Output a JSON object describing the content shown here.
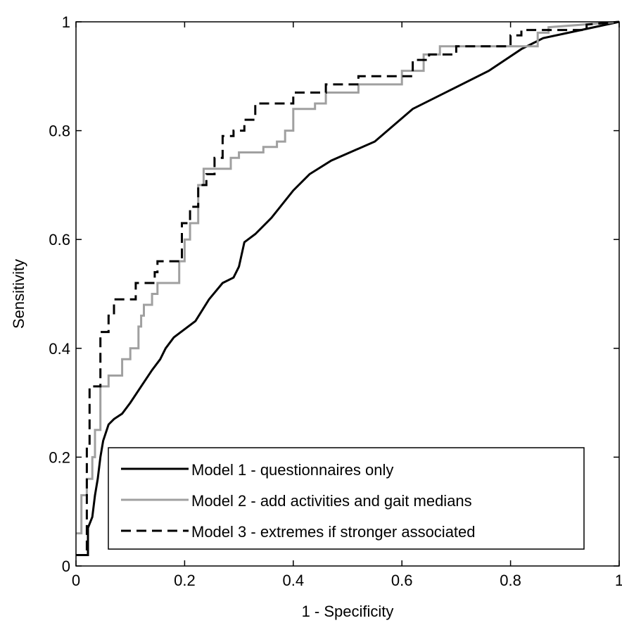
{
  "chart_data": {
    "type": "line",
    "xlabel": "1 - Specificity",
    "ylabel": "Sensitivity",
    "xlim": [
      0,
      1
    ],
    "ylim": [
      0,
      1
    ],
    "x_ticks": [
      0,
      0.2,
      0.4,
      0.6,
      0.8,
      1
    ],
    "y_ticks": [
      0,
      0.2,
      0.4,
      0.6,
      0.8,
      1
    ],
    "x_tick_labels": [
      "0",
      "0.2",
      "0.4",
      "0.6",
      "0.8",
      "1"
    ],
    "y_tick_labels": [
      "0",
      "0.2",
      "0.4",
      "0.6",
      "0.8",
      "1"
    ],
    "grid": false,
    "legend_position": "bottom-right",
    "series": [
      {
        "name": "Model 1 - questionnaires only",
        "color": "#000000",
        "style": "solid",
        "points": [
          [
            0,
            0.02
          ],
          [
            0.022,
            0.02
          ],
          [
            0.022,
            0.07
          ],
          [
            0.03,
            0.09
          ],
          [
            0.035,
            0.13
          ],
          [
            0.04,
            0.16
          ],
          [
            0.045,
            0.2
          ],
          [
            0.05,
            0.23
          ],
          [
            0.06,
            0.26
          ],
          [
            0.07,
            0.27
          ],
          [
            0.085,
            0.28
          ],
          [
            0.1,
            0.3
          ],
          [
            0.12,
            0.33
          ],
          [
            0.14,
            0.36
          ],
          [
            0.155,
            0.38
          ],
          [
            0.165,
            0.4
          ],
          [
            0.18,
            0.42
          ],
          [
            0.2,
            0.435
          ],
          [
            0.22,
            0.45
          ],
          [
            0.245,
            0.49
          ],
          [
            0.27,
            0.52
          ],
          [
            0.29,
            0.53
          ],
          [
            0.3,
            0.55
          ],
          [
            0.31,
            0.595
          ],
          [
            0.33,
            0.61
          ],
          [
            0.36,
            0.64
          ],
          [
            0.4,
            0.69
          ],
          [
            0.43,
            0.72
          ],
          [
            0.47,
            0.745
          ],
          [
            0.55,
            0.78
          ],
          [
            0.62,
            0.84
          ],
          [
            0.7,
            0.88
          ],
          [
            0.76,
            0.91
          ],
          [
            0.82,
            0.95
          ],
          [
            0.86,
            0.97
          ],
          [
            0.93,
            0.985
          ],
          [
            1,
            1
          ]
        ]
      },
      {
        "name": "Model 2 - add activities and gait medians",
        "color": "#a0a0a0",
        "style": "solid",
        "points": [
          [
            0,
            0.06
          ],
          [
            0.01,
            0.06
          ],
          [
            0.01,
            0.13
          ],
          [
            0.02,
            0.13
          ],
          [
            0.02,
            0.16
          ],
          [
            0.03,
            0.16
          ],
          [
            0.03,
            0.2
          ],
          [
            0.035,
            0.2
          ],
          [
            0.035,
            0.25
          ],
          [
            0.045,
            0.25
          ],
          [
            0.045,
            0.33
          ],
          [
            0.06,
            0.33
          ],
          [
            0.06,
            0.35
          ],
          [
            0.085,
            0.35
          ],
          [
            0.085,
            0.38
          ],
          [
            0.1,
            0.38
          ],
          [
            0.1,
            0.4
          ],
          [
            0.115,
            0.4
          ],
          [
            0.115,
            0.44
          ],
          [
            0.12,
            0.44
          ],
          [
            0.12,
            0.46
          ],
          [
            0.125,
            0.46
          ],
          [
            0.125,
            0.48
          ],
          [
            0.14,
            0.48
          ],
          [
            0.14,
            0.5
          ],
          [
            0.15,
            0.5
          ],
          [
            0.15,
            0.52
          ],
          [
            0.19,
            0.52
          ],
          [
            0.19,
            0.56
          ],
          [
            0.2,
            0.56
          ],
          [
            0.2,
            0.6
          ],
          [
            0.21,
            0.6
          ],
          [
            0.21,
            0.63
          ],
          [
            0.225,
            0.63
          ],
          [
            0.225,
            0.7
          ],
          [
            0.235,
            0.7
          ],
          [
            0.235,
            0.73
          ],
          [
            0.285,
            0.73
          ],
          [
            0.285,
            0.75
          ],
          [
            0.3,
            0.75
          ],
          [
            0.3,
            0.76
          ],
          [
            0.345,
            0.76
          ],
          [
            0.345,
            0.77
          ],
          [
            0.37,
            0.77
          ],
          [
            0.37,
            0.78
          ],
          [
            0.385,
            0.78
          ],
          [
            0.385,
            0.8
          ],
          [
            0.4,
            0.8
          ],
          [
            0.4,
            0.84
          ],
          [
            0.44,
            0.84
          ],
          [
            0.44,
            0.85
          ],
          [
            0.46,
            0.85
          ],
          [
            0.46,
            0.87
          ],
          [
            0.52,
            0.87
          ],
          [
            0.52,
            0.885
          ],
          [
            0.6,
            0.885
          ],
          [
            0.6,
            0.91
          ],
          [
            0.64,
            0.91
          ],
          [
            0.64,
            0.94
          ],
          [
            0.67,
            0.94
          ],
          [
            0.67,
            0.955
          ],
          [
            0.85,
            0.955
          ],
          [
            0.85,
            0.98
          ],
          [
            0.87,
            0.98
          ],
          [
            0.87,
            0.99
          ],
          [
            1,
            1
          ]
        ]
      },
      {
        "name": "Model 3 - extremes if stronger associated",
        "color": "#000000",
        "style": "dashed",
        "points": [
          [
            0,
            0.02
          ],
          [
            0.02,
            0.02
          ],
          [
            0.02,
            0.22
          ],
          [
            0.025,
            0.22
          ],
          [
            0.025,
            0.33
          ],
          [
            0.045,
            0.33
          ],
          [
            0.045,
            0.43
          ],
          [
            0.06,
            0.43
          ],
          [
            0.06,
            0.46
          ],
          [
            0.07,
            0.46
          ],
          [
            0.07,
            0.49
          ],
          [
            0.11,
            0.49
          ],
          [
            0.11,
            0.52
          ],
          [
            0.145,
            0.52
          ],
          [
            0.145,
            0.54
          ],
          [
            0.15,
            0.54
          ],
          [
            0.15,
            0.56
          ],
          [
            0.195,
            0.56
          ],
          [
            0.195,
            0.63
          ],
          [
            0.21,
            0.63
          ],
          [
            0.21,
            0.66
          ],
          [
            0.225,
            0.66
          ],
          [
            0.225,
            0.7
          ],
          [
            0.24,
            0.7
          ],
          [
            0.24,
            0.72
          ],
          [
            0.255,
            0.72
          ],
          [
            0.255,
            0.75
          ],
          [
            0.27,
            0.75
          ],
          [
            0.27,
            0.79
          ],
          [
            0.29,
            0.79
          ],
          [
            0.29,
            0.8
          ],
          [
            0.31,
            0.8
          ],
          [
            0.31,
            0.82
          ],
          [
            0.33,
            0.82
          ],
          [
            0.33,
            0.85
          ],
          [
            0.4,
            0.85
          ],
          [
            0.4,
            0.87
          ],
          [
            0.46,
            0.87
          ],
          [
            0.46,
            0.885
          ],
          [
            0.52,
            0.885
          ],
          [
            0.52,
            0.9
          ],
          [
            0.62,
            0.9
          ],
          [
            0.62,
            0.93
          ],
          [
            0.65,
            0.93
          ],
          [
            0.65,
            0.94
          ],
          [
            0.7,
            0.94
          ],
          [
            0.7,
            0.955
          ],
          [
            0.8,
            0.955
          ],
          [
            0.8,
            0.975
          ],
          [
            0.82,
            0.975
          ],
          [
            0.82,
            0.985
          ],
          [
            0.94,
            0.985
          ],
          [
            0.94,
            0.995
          ],
          [
            1,
            1
          ]
        ]
      }
    ]
  }
}
